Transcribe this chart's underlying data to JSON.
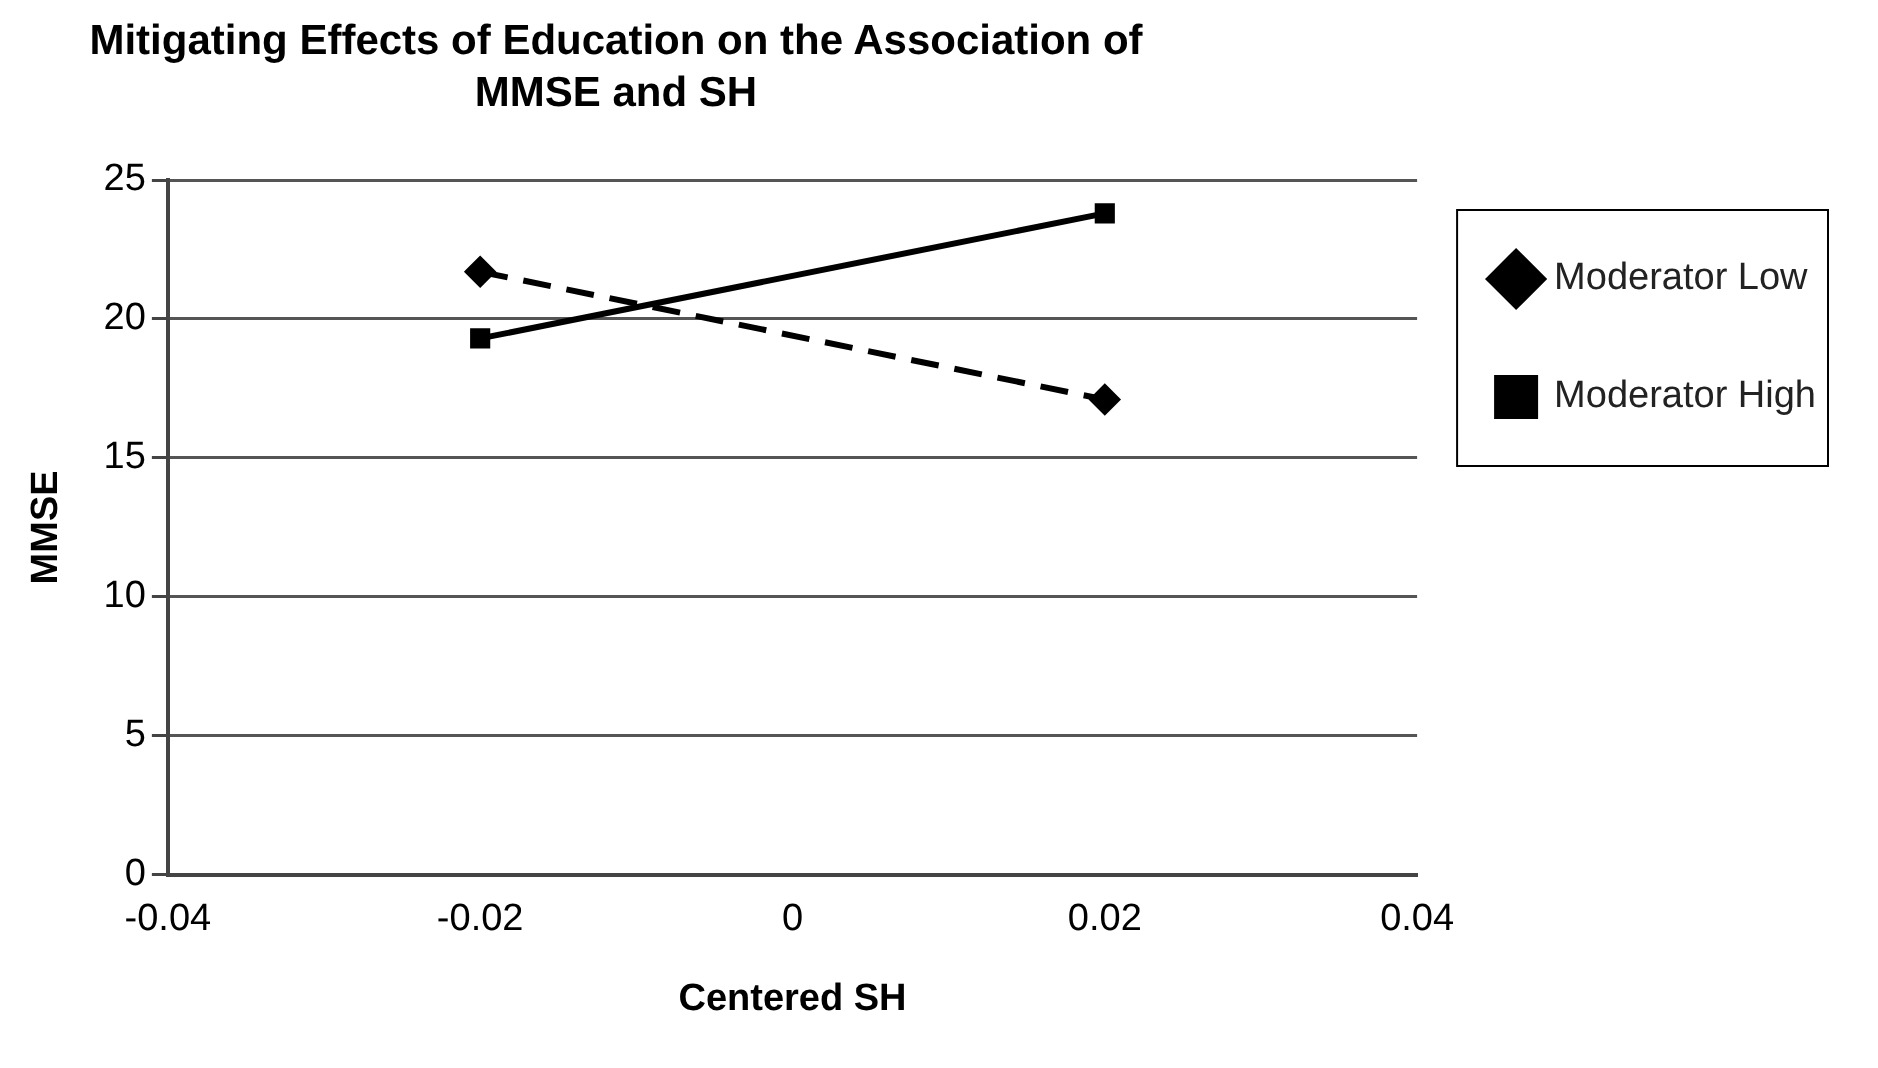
{
  "chart_data": {
    "type": "line",
    "title": "Mitigating Effects of Education on the Association of MMSE and SH",
    "xlabel": "Centered SH",
    "ylabel": "MMSE",
    "x": [
      -0.02,
      0.02
    ],
    "series": [
      {
        "name": "Moderator Low",
        "color": "#000000",
        "values": [
          21.7,
          17.1
        ],
        "line_style": "dashed",
        "marker": "diamond"
      },
      {
        "name": "Moderator High",
        "color": "#000000",
        "values": [
          19.3,
          23.8
        ],
        "line_style": "solid",
        "marker": "square"
      }
    ],
    "xlim": [
      -0.04,
      0.04
    ],
    "xticks": [
      -0.04,
      -0.02,
      0,
      0.02,
      0.04
    ],
    "ylim": [
      0,
      25
    ],
    "yticks": [
      0,
      5,
      10,
      15,
      20,
      25
    ],
    "grid": "y",
    "legend": "right"
  }
}
